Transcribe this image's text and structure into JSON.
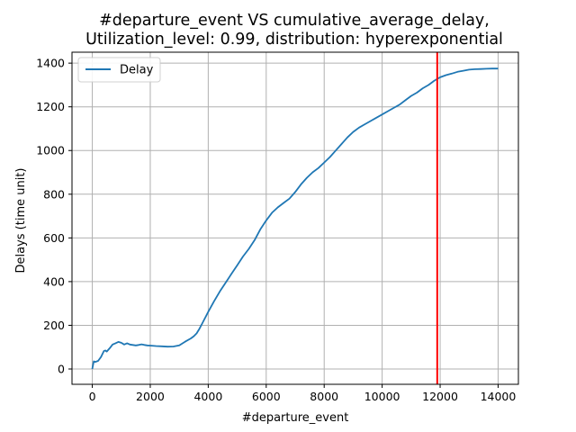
{
  "chart_data": {
    "type": "line",
    "title": "#departure_event VS cumulative_average_delay,",
    "subtitle": "Utilization_level: 0.99, distribution: hyperexponential",
    "xlabel": "#departure_event",
    "ylabel": "Delays (time unit)",
    "xlim": [
      -700,
      14700
    ],
    "ylim": [
      -70,
      1450
    ],
    "xticks": [
      0,
      2000,
      4000,
      6000,
      8000,
      10000,
      12000,
      14000
    ],
    "yticks": [
      0,
      200,
      400,
      600,
      800,
      1000,
      1200,
      1400
    ],
    "grid": true,
    "legend_position": "top-left",
    "vline": {
      "x": 11900,
      "color": "#ff0000"
    },
    "series": [
      {
        "name": "Delay",
        "color": "#1f77b4",
        "x": [
          0,
          50,
          100,
          200,
          300,
          400,
          450,
          500,
          600,
          700,
          800,
          900,
          1000,
          1100,
          1200,
          1300,
          1400,
          1500,
          1600,
          1700,
          1800,
          1900,
          2000,
          2200,
          2400,
          2600,
          2800,
          3000,
          3200,
          3400,
          3500,
          3600,
          3700,
          3800,
          4000,
          4200,
          4400,
          4600,
          4800,
          5000,
          5200,
          5400,
          5600,
          5800,
          6000,
          6200,
          6400,
          6600,
          6800,
          7000,
          7200,
          7400,
          7600,
          7800,
          8000,
          8200,
          8400,
          8600,
          8800,
          9000,
          9200,
          9400,
          9600,
          9800,
          10000,
          10200,
          10400,
          10600,
          10800,
          11000,
          11200,
          11400,
          11600,
          11800,
          12000,
          12200,
          12400,
          12600,
          12800,
          13000,
          13200,
          13400,
          13600,
          13800,
          14000
        ],
        "values": [
          0,
          35,
          32,
          37,
          55,
          82,
          85,
          80,
          95,
          112,
          118,
          124,
          120,
          112,
          118,
          112,
          110,
          108,
          110,
          113,
          110,
          108,
          107,
          105,
          104,
          102,
          103,
          108,
          125,
          140,
          150,
          163,
          185,
          210,
          262,
          310,
          355,
          395,
          435,
          475,
          515,
          550,
          590,
          640,
          680,
          715,
          740,
          760,
          780,
          810,
          845,
          875,
          900,
          920,
          945,
          970,
          1000,
          1030,
          1060,
          1085,
          1105,
          1120,
          1135,
          1150,
          1165,
          1180,
          1195,
          1210,
          1230,
          1250,
          1265,
          1285,
          1300,
          1320,
          1335,
          1345,
          1352,
          1360,
          1365,
          1370,
          1372,
          1373,
          1374,
          1375,
          1375
        ]
      }
    ]
  }
}
